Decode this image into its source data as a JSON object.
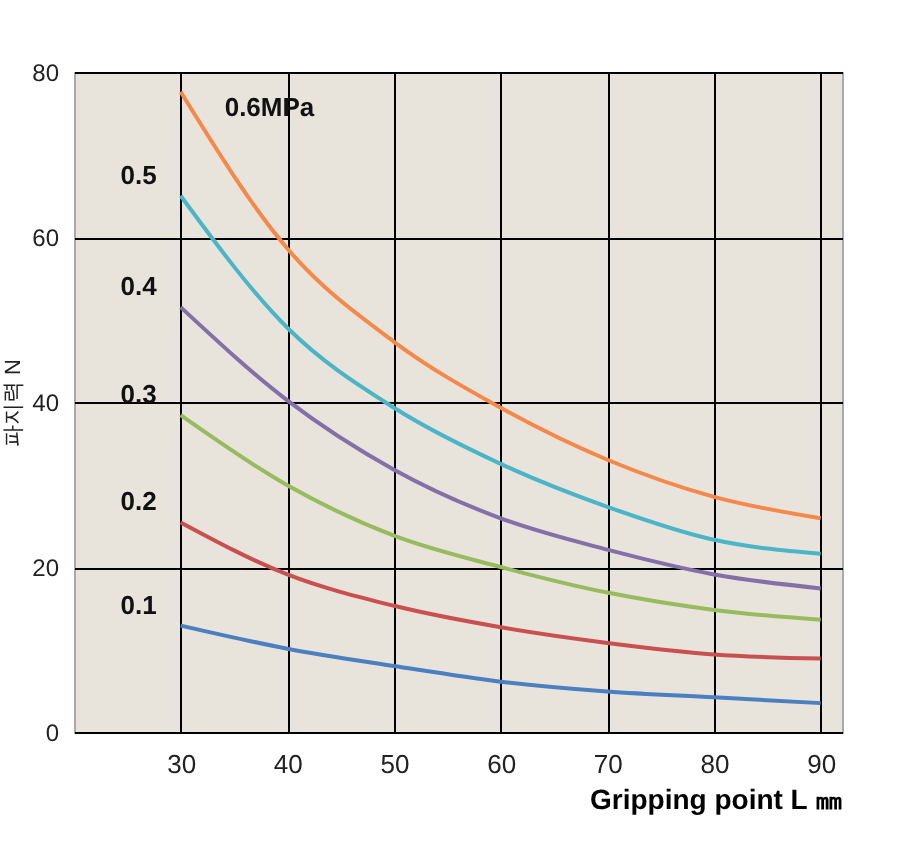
{
  "chart_data": {
    "type": "line",
    "xlabel": "Gripping point L ㎜",
    "ylabel": "파지력 N",
    "x": [
      30,
      40,
      50,
      60,
      70,
      80,
      90
    ],
    "xlim": [
      20,
      92
    ],
    "xticks": [
      30,
      40,
      50,
      60,
      70,
      80,
      90
    ],
    "ylim": [
      0,
      80
    ],
    "yticks": [
      0,
      20,
      40,
      60,
      80
    ],
    "grid": true,
    "legend": false,
    "marker": "none",
    "line_style": "solid",
    "series": [
      {
        "name": "0.6MPa",
        "color": "#f4894a",
        "values": [
          77.6,
          58.6,
          47.3,
          39.3,
          33,
          28.5,
          25.9
        ]
      },
      {
        "name": "0.5",
        "color": "#4bb5c8",
        "values": [
          65,
          49,
          39.3,
          32.5,
          27.3,
          23.3,
          21.6
        ]
      },
      {
        "name": "0.4",
        "color": "#8470a8",
        "values": [
          51.5,
          40.2,
          31.8,
          25.9,
          22.1,
          19.1,
          17.4
        ]
      },
      {
        "name": "0.3",
        "color": "#98bb5e",
        "values": [
          38.4,
          29.9,
          23.8,
          20,
          16.9,
          14.8,
          13.6
        ]
      },
      {
        "name": "0.2",
        "color": "#c9504f",
        "values": [
          25.4,
          19.1,
          15.3,
          12.7,
          10.8,
          9.4,
          8.9
        ]
      },
      {
        "name": "0.1",
        "color": "#4a7fc0",
        "values": [
          12.9,
          10.1,
          8,
          6.1,
          4.9,
          4.2,
          3.5
        ]
      }
    ]
  }
}
